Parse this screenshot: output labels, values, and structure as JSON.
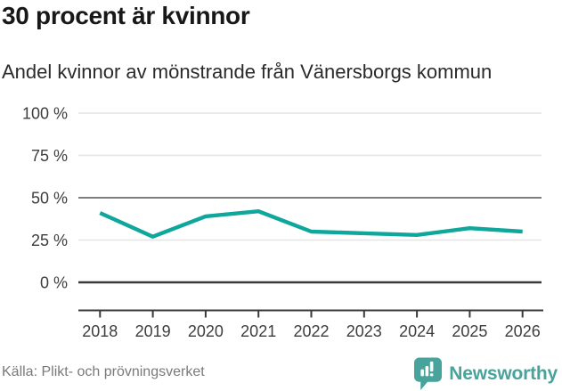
{
  "chart_data": {
    "type": "line",
    "title": "30 procent är kvinnor",
    "subtitle": "Andel kvinnor av mönstrande från Vänersborgs kommun",
    "categories": [
      "2018",
      "2019",
      "2020",
      "2021",
      "2022",
      "2023",
      "2024",
      "2025",
      "2026"
    ],
    "values": [
      41,
      27,
      39,
      42,
      30,
      29,
      28,
      32,
      30
    ],
    "xlabel": "",
    "ylabel": "",
    "ylim": [
      0,
      100
    ],
    "yticks": [
      {
        "value": 0,
        "label": "0 %"
      },
      {
        "value": 25,
        "label": "25 %"
      },
      {
        "value": 50,
        "label": "50 %"
      },
      {
        "value": 75,
        "label": "75 %"
      },
      {
        "value": 100,
        "label": "100 %"
      }
    ],
    "grid": true,
    "legend_position": "none",
    "line_color": "#0fa79c"
  },
  "footer": {
    "source": "Källa: Plikt- och prövningsverket",
    "brand": {
      "name": "Newsworthy",
      "color": "#47a39b",
      "icon": "newsworthy-bubble-chart-icon"
    }
  }
}
